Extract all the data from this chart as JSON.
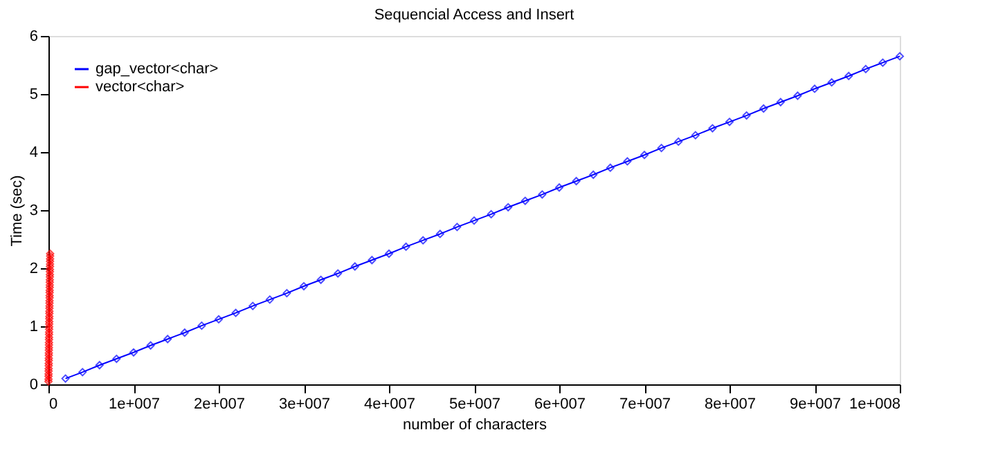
{
  "chart_data": {
    "type": "line",
    "title": "Sequencial Access and Insert",
    "xlabel": "number of characters",
    "ylabel": "Time (sec)",
    "xlim": [
      0,
      100000000
    ],
    "ylim": [
      0,
      6
    ],
    "xticks": [
      0,
      {
        "value": 10000000,
        "label": "1e+007"
      },
      {
        "value": 20000000,
        "label": "2e+007"
      },
      {
        "value": 30000000,
        "label": "3e+007"
      },
      {
        "value": 40000000,
        "label": "4e+007"
      },
      {
        "value": 50000000,
        "label": "5e+007"
      },
      {
        "value": 60000000,
        "label": "6e+007"
      },
      {
        "value": 70000000,
        "label": "7e+007"
      },
      {
        "value": 80000000,
        "label": "8e+007"
      },
      {
        "value": 90000000,
        "label": "9e+007"
      },
      {
        "value": 100000000,
        "label": "1e+008"
      }
    ],
    "yticks": [
      0,
      1,
      2,
      3,
      4,
      5,
      6
    ],
    "grid": false,
    "legend": "top left",
    "marker": "diamond",
    "line_style": "solid",
    "series": [
      {
        "name": "gap_vector<char>",
        "color": "#0000ff",
        "x": [
          2000000,
          4000000,
          6000000,
          8000000,
          10000000,
          12000000,
          14000000,
          16000000,
          18000000,
          20000000,
          22000000,
          24000000,
          26000000,
          28000000,
          30000000,
          32000000,
          34000000,
          36000000,
          38000000,
          40000000,
          42000000,
          44000000,
          46000000,
          48000000,
          50000000,
          52000000,
          54000000,
          56000000,
          58000000,
          60000000,
          62000000,
          64000000,
          66000000,
          68000000,
          70000000,
          72000000,
          74000000,
          76000000,
          78000000,
          80000000,
          82000000,
          84000000,
          86000000,
          88000000,
          90000000,
          92000000,
          94000000,
          96000000,
          98000000,
          100000000
        ],
        "values": [
          0.1,
          0.21,
          0.33,
          0.44,
          0.55,
          0.67,
          0.78,
          0.89,
          1.01,
          1.12,
          1.23,
          1.35,
          1.46,
          1.57,
          1.69,
          1.8,
          1.91,
          2.03,
          2.14,
          2.25,
          2.37,
          2.48,
          2.59,
          2.71,
          2.82,
          2.93,
          3.05,
          3.16,
          3.27,
          3.39,
          3.5,
          3.61,
          3.73,
          3.84,
          3.95,
          4.07,
          4.18,
          4.29,
          4.41,
          4.52,
          4.63,
          4.75,
          4.86,
          4.97,
          5.09,
          5.2,
          5.31,
          5.43,
          5.54,
          5.65
        ]
      },
      {
        "name": "vector<char>",
        "color": "#ff0000",
        "x": [
          4000,
          8000,
          12000,
          16000,
          20000,
          24000,
          28000,
          32000,
          36000,
          40000,
          44000,
          48000,
          52000,
          56000,
          60000,
          64000,
          68000,
          72000,
          76000,
          80000,
          84000,
          88000,
          92000,
          96000,
          100000,
          104000,
          108000,
          112000,
          116000,
          120000,
          124000,
          128000,
          132000,
          136000,
          140000,
          144000,
          148000,
          152000,
          156000,
          160000,
          164000,
          168000,
          172000,
          176000,
          180000,
          184000,
          188000,
          192000,
          196000,
          200000
        ],
        "values": [
          0.05,
          0.09,
          0.14,
          0.18,
          0.23,
          0.27,
          0.32,
          0.36,
          0.41,
          0.45,
          0.5,
          0.54,
          0.59,
          0.63,
          0.68,
          0.72,
          0.77,
          0.81,
          0.86,
          0.9,
          0.95,
          0.99,
          1.04,
          1.08,
          1.13,
          1.17,
          1.22,
          1.26,
          1.31,
          1.35,
          1.4,
          1.44,
          1.49,
          1.53,
          1.58,
          1.62,
          1.67,
          1.71,
          1.76,
          1.8,
          1.85,
          1.89,
          1.94,
          1.98,
          2.03,
          2.07,
          2.12,
          2.16,
          2.21,
          2.25
        ]
      }
    ]
  }
}
